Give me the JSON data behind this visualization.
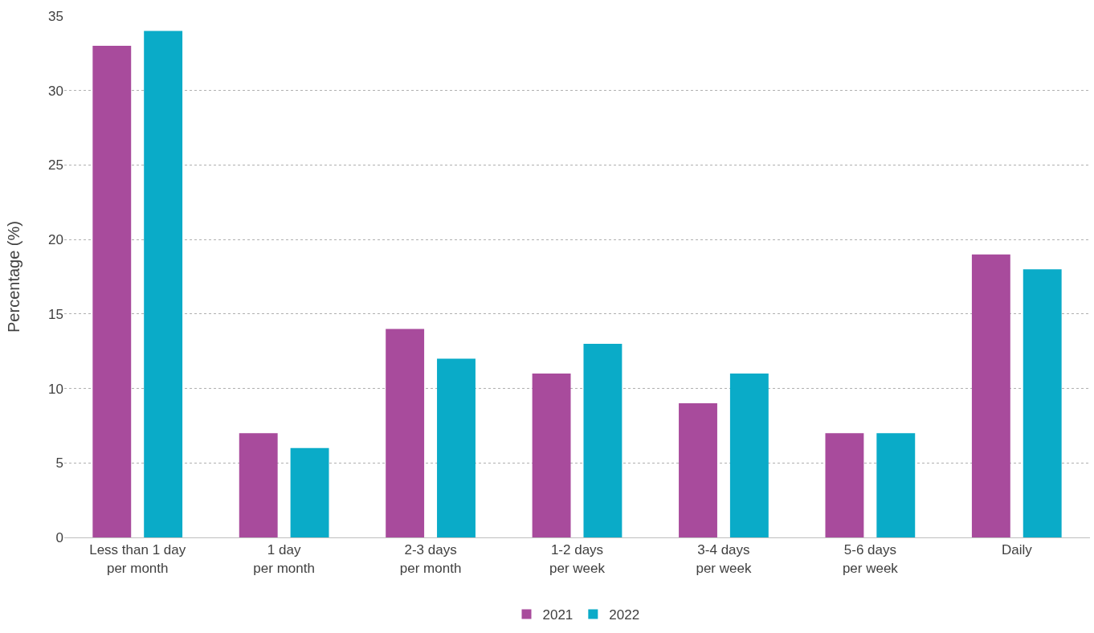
{
  "chart_data": {
    "type": "bar",
    "ylabel": "Percentage (%)",
    "categories": [
      "Less than 1 day\nper month",
      "1 day\nper month",
      "2-3 days\nper month",
      "1-2 days\nper week",
      "3-4 days\nper week",
      "5-6 days\nper week",
      "Daily"
    ],
    "series": [
      {
        "name": "2021",
        "color": "#a84b9c",
        "values": [
          33,
          7,
          14,
          11,
          9,
          7,
          19
        ]
      },
      {
        "name": "2022",
        "color": "#0aabc8",
        "values": [
          34,
          6,
          12,
          13,
          11,
          7,
          18
        ]
      }
    ],
    "ylim": [
      0,
      35
    ],
    "yticks": [
      0,
      5,
      10,
      15,
      20,
      25,
      30,
      35
    ],
    "grid": "y",
    "legend": "bottom"
  }
}
